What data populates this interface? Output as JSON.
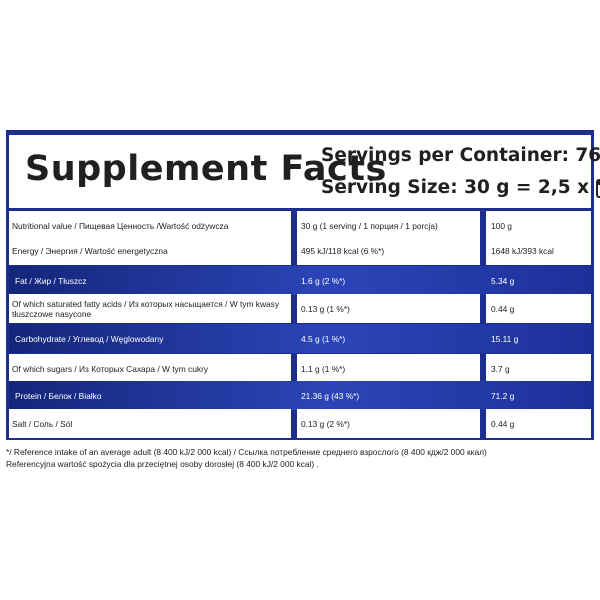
{
  "header": {
    "title": "Supplement Facts",
    "servings": "Servings per Container: 76",
    "serving_size": "Serving Size: 30 g = 2,5 x",
    "scoop_icon": "scoop-icon"
  },
  "rows": [
    {
      "label": "Nutritional value / Пищевая Ценность /Wartość odżywcza",
      "serving": "30 g (1 serving / 1 порция / 1 porcja)",
      "per100": "100 g"
    },
    {
      "label": "Energy / Энергия / Wartość energetyczna",
      "serving": "495 kJ/118 kcal (6 %*)",
      "per100": "1648 kJ/393 kcal"
    },
    {
      "label": "Fat / Жир / Tłuszcz",
      "serving": "1.6 g (2 %*)",
      "per100": "5.34 g"
    },
    {
      "label": "Of which saturated fatty acids / Из которых насыщается / W tym kwasy tłuszczowe nasycone",
      "serving": "0.13 g (1 %*)",
      "per100": "0.44 g"
    },
    {
      "label": "Carbohydrate / Углевод / Węglowodany",
      "serving": "4.5 g (1 %*)",
      "per100": "15.11 g"
    },
    {
      "label": "Of which sugars / Из Которых Сахара / W tym cukry",
      "serving": "1.1 g (1 %*)",
      "per100": "3.7 g"
    },
    {
      "label": "Protein / Белок / Białko",
      "serving": "21.36 g (43 %*)",
      "per100": "71.2 g"
    },
    {
      "label": "Salt / Соль / Sól",
      "serving": "0.13 g (2 %*)",
      "per100": "0.44 g"
    }
  ],
  "footnote": {
    "line1": "*/ Reference intake of an average adult (8 400 kJ/2 000 kcal) / Ссылка потребление среднего взрослого (8 400 кдж/2 000 ккал)",
    "line2": "Referencyjna wartość spożycia dla przeciętnej osoby dorosłej (8 400 kJ/2 000 kcal) ."
  },
  "colors": {
    "panel_blue": "#1c2f8f",
    "row_blue": "#2b45b8"
  }
}
